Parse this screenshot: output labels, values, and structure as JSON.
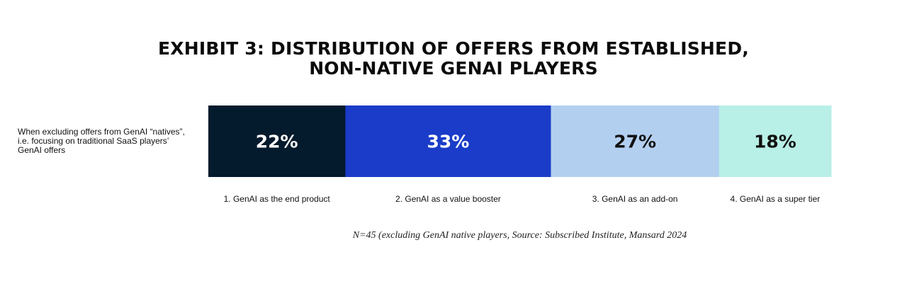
{
  "chart_data": {
    "type": "bar",
    "title": [
      "EXHIBIT 3: DISTRIBUTION OF OFFERS FROM ESTABLISHED,",
      "NON-NATIVE GENAI PLAYERS"
    ],
    "row_label": [
      "When excluding offers from GenAI “natives”,",
      "i.e. focusing on traditional SaaS players’",
      "GenAI offers"
    ],
    "categories": [
      "1. GenAI as the end product",
      "2. GenAI as a value booster",
      "3. GenAI as an add-on",
      "4. GenAI as a super tier"
    ],
    "values": [
      22,
      33,
      27,
      18
    ],
    "value_labels": [
      "22%",
      "33%",
      "27%",
      "18%"
    ],
    "colors": [
      "#041a2d",
      "#1a3cc8",
      "#b3cff0",
      "#b8efe6"
    ],
    "label_colors": [
      "#ffffff",
      "#ffffff",
      "#111111",
      "#111111"
    ],
    "stacked": true,
    "orientation": "horizontal",
    "legend": "bottom"
  },
  "footnote": "N=45 (excluding GenAI native players, Source: Subscribed Institute, Mansard 2024"
}
